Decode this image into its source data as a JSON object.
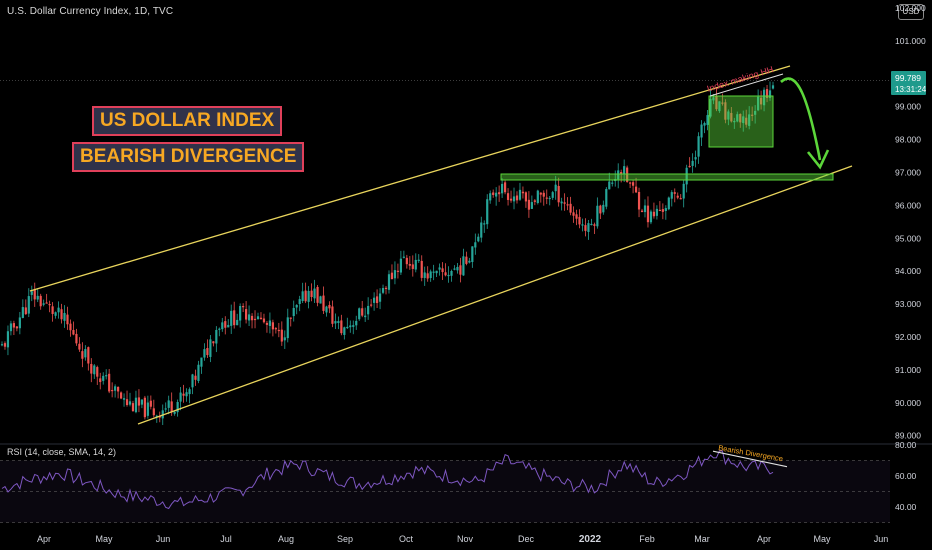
{
  "header": {
    "title": "U.S. Dollar Currency Index, 1D, TVC",
    "currency": "USD"
  },
  "annotations": {
    "title_line1": "US DOLLAR INDEX",
    "title_line2": "BEARISH DIVERGENCE",
    "hh_label": "Index making HH",
    "rsi_div_label": "Bearish Divergence"
  },
  "price_tag": {
    "price": "99.789",
    "countdown": "13:31:24"
  },
  "rsi_panel": {
    "label": "RSI (14, close, SMA, 14, 2)",
    "ticks": [
      "80.00",
      "60.00",
      "40.00"
    ]
  },
  "colors": {
    "bull": "#26a69a",
    "bear": "#ef5350",
    "channel": "#e8d45c",
    "support_zone": "#5cd63a",
    "arrow": "#5cd63a",
    "hh_label": "#e0405a",
    "rsi": "#7e57c2",
    "title_text": "#f7a823",
    "title_border": "#e0405a",
    "title_bg": "#30324a"
  },
  "chart_data": [
    {
      "type": "candlestick",
      "title": "U.S. Dollar Currency Index, 1D, TVC",
      "y_axis": {
        "ticks": [
          89.0,
          90.0,
          91.0,
          92.0,
          93.0,
          94.0,
          95.0,
          96.0,
          97.0,
          98.0,
          99.0,
          100.0,
          101.0,
          102.0
        ],
        "range": [
          88.9,
          102.3
        ]
      },
      "x_axis": {
        "ticks": [
          "Apr",
          "May",
          "Jun",
          "Jul",
          "Aug",
          "Sep",
          "Oct",
          "Nov",
          "Dec",
          "2022",
          "Feb",
          "Mar",
          "Apr",
          "May",
          "Jun"
        ]
      },
      "anchors": [
        {
          "month": "Mar 2021",
          "close": 91.7
        },
        {
          "month": "Apr 2021",
          "close": 93.3
        },
        {
          "month": "Apr 2021",
          "close": 92.5
        },
        {
          "month": "May 2021",
          "close": 91.0
        },
        {
          "month": "May 2021",
          "close": 90.0
        },
        {
          "month": "Jun 2021",
          "close": 89.7
        },
        {
          "month": "Jun 2021",
          "close": 90.2
        },
        {
          "month": "Jul 2021",
          "close": 92.4
        },
        {
          "month": "Jul 2021",
          "close": 92.8
        },
        {
          "month": "Aug 2021",
          "close": 92.0
        },
        {
          "month": "Aug 2021",
          "close": 93.5
        },
        {
          "month": "Sep 2021",
          "close": 92.2
        },
        {
          "month": "Sep 2021",
          "close": 93.0
        },
        {
          "month": "Oct 2021",
          "close": 94.4
        },
        {
          "month": "Oct 2021",
          "close": 93.8
        },
        {
          "month": "Nov 2021",
          "close": 94.2
        },
        {
          "month": "Nov 2021",
          "close": 96.6
        },
        {
          "month": "Dec 2021",
          "close": 96.1
        },
        {
          "month": "Dec 2021",
          "close": 96.4
        },
        {
          "month": "Jan 2022",
          "close": 95.2
        },
        {
          "month": "Jan 2022",
          "close": 97.2
        },
        {
          "month": "Feb 2022",
          "close": 95.6
        },
        {
          "month": "Feb 2022",
          "close": 96.4
        },
        {
          "month": "Mar 2022",
          "close": 99.1
        },
        {
          "month": "Mar 2022",
          "close": 98.4
        },
        {
          "month": "Apr 2022",
          "close": 99.789
        }
      ],
      "last_price": 99.789,
      "channel": {
        "upper": [
          [
            "Mar 2021",
            93.4
          ],
          [
            "Apr 2022",
            100.1
          ]
        ],
        "lower": [
          [
            "May 2021",
            89.3
          ],
          [
            "May 2022",
            97.0
          ]
        ]
      },
      "support_zone": [
        96.8,
        96.95
      ],
      "consolidation_box": [
        97.8,
        99.3
      ],
      "projection": "down to ~97.0"
    },
    {
      "type": "line",
      "title": "RSI (14, close, SMA, 14, 2)",
      "y_axis": {
        "ticks": [
          40,
          60,
          80
        ],
        "overbought": 70,
        "oversold": 30
      },
      "series": [
        {
          "name": "RSI",
          "values": [
            52,
            58,
            62,
            55,
            48,
            45,
            42,
            46,
            50,
            62,
            68,
            60,
            55,
            58,
            64,
            60,
            56,
            70,
            62,
            55,
            52,
            68,
            55,
            62,
            76,
            66,
            65
          ]
        }
      ],
      "divergence": {
        "from_rsi": 76,
        "to_rsi": 66
      }
    }
  ]
}
